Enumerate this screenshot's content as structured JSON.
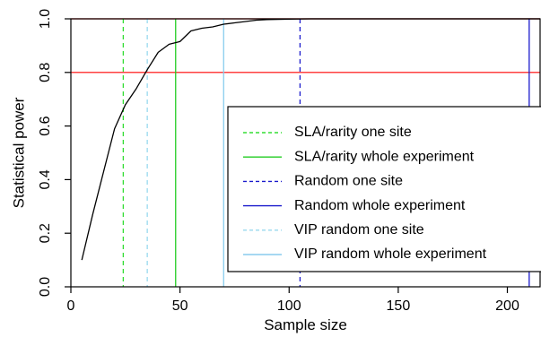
{
  "chart_data": {
    "type": "line",
    "title": "",
    "xlabel": "Sample size",
    "ylabel": "Statistical power",
    "xlim": [
      0,
      215
    ],
    "ylim": [
      0,
      1.0
    ],
    "x_ticks": [
      0,
      50,
      100,
      150,
      200
    ],
    "y_ticks": [
      0.0,
      0.2,
      0.4,
      0.6,
      0.8,
      1.0
    ],
    "x_tick_labels": [
      "0",
      "50",
      "100",
      "150",
      "200"
    ],
    "y_tick_labels": [
      "0.0",
      "0.2",
      "0.4",
      "0.6",
      "0.8",
      "1.0"
    ],
    "grid": false,
    "legend_position": "bottom-right",
    "power_curve": {
      "color": "#000000",
      "x": [
        5,
        10,
        15,
        20,
        25,
        30,
        35,
        40,
        45,
        50,
        55,
        60,
        65,
        70,
        75,
        80,
        85,
        90,
        95,
        100,
        110,
        120,
        130,
        140,
        150,
        160,
        170,
        180,
        190,
        200,
        210,
        215
      ],
      "y": [
        0.1,
        0.27,
        0.43,
        0.59,
        0.68,
        0.74,
        0.81,
        0.875,
        0.905,
        0.915,
        0.955,
        0.965,
        0.97,
        0.98,
        0.985,
        0.99,
        0.995,
        0.997,
        0.998,
        0.999,
        1.0,
        1.0,
        1.0,
        1.0,
        1.0,
        1.0,
        1.0,
        1.0,
        1.0,
        1.0,
        1.0,
        1.0
      ]
    },
    "horizontal_lines": [
      {
        "y": 0.8,
        "color": "#ff0000"
      },
      {
        "y": 1.0,
        "color": "#ff0000"
      }
    ],
    "vertical_lines": [
      {
        "name": "SLA/rarity one site",
        "x": 24,
        "color": "#33dd33",
        "dash": true
      },
      {
        "name": "SLA/rarity whole experiment",
        "x": 48,
        "color": "#22cc22",
        "dash": false
      },
      {
        "name": "Random one site",
        "x": 105,
        "color": "#1a1acc",
        "dash": true
      },
      {
        "name": "Random whole experiment",
        "x": 210,
        "color": "#1a1acc",
        "dash": false
      },
      {
        "name": "VIP random one site",
        "x": 35,
        "color": "#99d9ee",
        "dash": true
      },
      {
        "name": "VIP random whole experiment",
        "x": 70,
        "color": "#88ccee",
        "dash": false
      }
    ],
    "legend": [
      {
        "label": "SLA/rarity one site",
        "color": "#33dd33",
        "dash": true
      },
      {
        "label": "SLA/rarity whole experiment",
        "color": "#22cc22",
        "dash": false
      },
      {
        "label": "Random one site",
        "color": "#1a1acc",
        "dash": true
      },
      {
        "label": "Random whole experiment",
        "color": "#1a1acc",
        "dash": false
      },
      {
        "label": "VIP random one site",
        "color": "#99d9ee",
        "dash": true
      },
      {
        "label": "VIP random whole experiment",
        "color": "#88ccee",
        "dash": false
      }
    ]
  }
}
